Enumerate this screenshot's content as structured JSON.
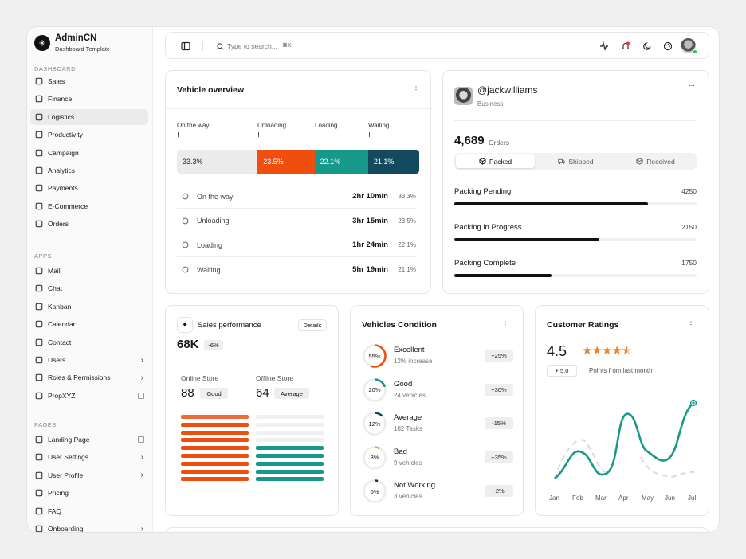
{
  "brand": {
    "name": "AdminCN",
    "subtitle": "Dashboard Template"
  },
  "sidebar": {
    "sections": [
      "DASHBOARD",
      "APPS",
      "PAGES"
    ],
    "dashboard": [
      "Sales",
      "Finance",
      "Logistics",
      "Productivity",
      "Campaign",
      "Analytics",
      "Payments",
      "E-Commerce",
      "Orders"
    ],
    "apps": [
      "Mail",
      "Chat",
      "Kanban",
      "Calendar",
      "Contact",
      "Users",
      "Roles & Permissions",
      "PropXYZ"
    ],
    "pages": [
      "Landing Page",
      "User Settings",
      "User Profile",
      "Pricing",
      "FAQ",
      "Onboarding"
    ],
    "active": "Logistics"
  },
  "topbar": {
    "search_placeholder": "Type to search...",
    "shortcut": "⌘K"
  },
  "vehicle_overview": {
    "title": "Vehicle overview",
    "labels": [
      "On the way",
      "Unloading",
      "Loading",
      "Waiting"
    ],
    "segments": [
      {
        "value": "33.3%",
        "color": "#ececec",
        "text": "#222",
        "pct": 33.3
      },
      {
        "value": "23.5%",
        "color": "#f04e0f",
        "text": "#fff",
        "pct": 23.5
      },
      {
        "value": "22.1%",
        "color": "#16998a",
        "text": "#fff",
        "pct": 22.1
      },
      {
        "value": "21.1%",
        "color": "#144a5e",
        "text": "#fff",
        "pct": 21.1
      }
    ],
    "rows": [
      {
        "name": "On the way",
        "time": "2hr 10min",
        "pct": "33.3%"
      },
      {
        "name": "Unloading",
        "time": "3hr 15min",
        "pct": "23.5%"
      },
      {
        "name": "Loading",
        "time": "1hr 24min",
        "pct": "22.1%"
      },
      {
        "name": "Waiting",
        "time": "5hr 19min",
        "pct": "21.1%"
      }
    ]
  },
  "profile": {
    "handle": "@jackwilliams",
    "role": "Business",
    "orders": "4,689",
    "orders_label": "Orders",
    "tabs": [
      "Packed",
      "Shipped",
      "Received"
    ],
    "packing": [
      {
        "name": "Packing Pending",
        "value": "4250",
        "fraction": 0.8
      },
      {
        "name": "Packing in Progress",
        "value": "2150",
        "fraction": 0.6
      },
      {
        "name": "Packing Complete",
        "value": "1750",
        "fraction": 0.4
      }
    ]
  },
  "sales": {
    "title": "Sales performance",
    "details": "Details",
    "total": "68K",
    "change": "-6%",
    "online": {
      "label": "Online Store",
      "value": "88",
      "badge": "Good"
    },
    "offline": {
      "label": "Offline Store",
      "value": "64",
      "badge": "Average"
    }
  },
  "vehicles_condition": {
    "title": "Vehicles Condition",
    "items": [
      {
        "name": "Excellent",
        "sub": "12% increase",
        "ring": "55%",
        "frac": 0.55,
        "color": "#f04e0f",
        "change": "+25%"
      },
      {
        "name": "Good",
        "sub": "24 vehicles",
        "ring": "20%",
        "frac": 0.2,
        "color": "#16998a",
        "change": "+30%"
      },
      {
        "name": "Average",
        "sub": "182 Tasks",
        "ring": "12%",
        "frac": 0.12,
        "color": "#144a5e",
        "change": "-15%"
      },
      {
        "name": "Bad",
        "sub": "9 vehicles",
        "ring": "8%",
        "frac": 0.08,
        "color": "#f4a62a",
        "change": "+35%"
      },
      {
        "name": "Not Working",
        "sub": "3 vehicles",
        "ring": "5%",
        "frac": 0.05,
        "color": "#333333",
        "change": "-2%"
      }
    ]
  },
  "ratings": {
    "title": "Customer Ratings",
    "score": "4.5",
    "delta": "+ 5.0",
    "delta_label": "Points from last month",
    "months": [
      "Jan",
      "Feb",
      "Mar",
      "Apr",
      "May",
      "Jun",
      "Jul"
    ]
  }
}
